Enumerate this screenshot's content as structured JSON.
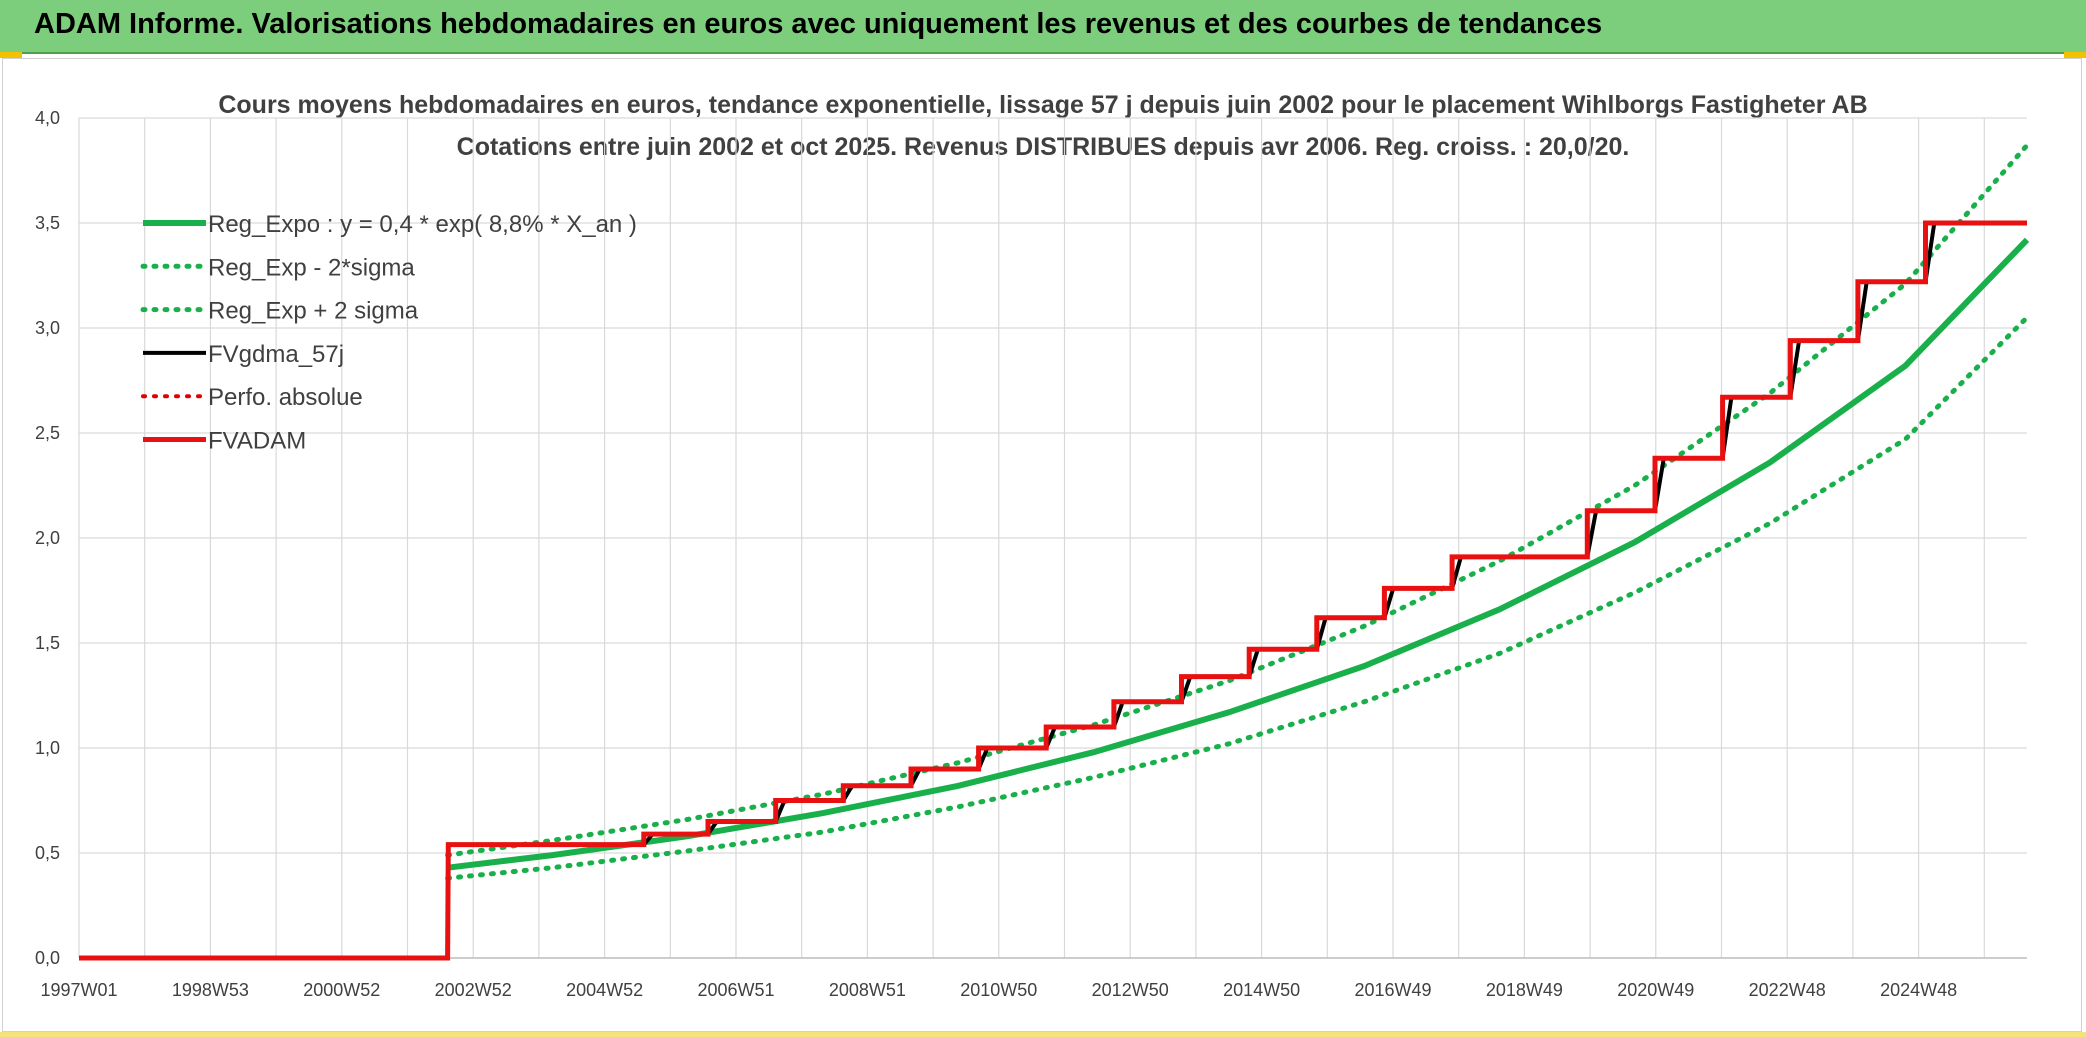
{
  "banner": {
    "title": "ADAM Informe. Valorisations hebdomadaires en euros avec uniquement les revenus et des courbes de tendances",
    "background": "#7ccd7c"
  },
  "chart_data": {
    "type": "line",
    "title_line1": "Cours moyens hebdomadaires en euros, tendance exponentielle, lissage 57 j depuis juin 2002 pour le placement Wihlborgs Fastigheter AB",
    "title_line2": "Cotations entre juin 2002 et oct 2025. Revenus DISTRIBUES depuis avr 2006. Reg. croiss. : 20,0/20.",
    "xlabel": "",
    "ylabel": "",
    "x_tick_labels": [
      "1997W01",
      "1998W53",
      "2000W52",
      "2002W52",
      "2004W52",
      "2006W51",
      "2008W51",
      "2010W50",
      "2012W50",
      "2014W50",
      "2016W49",
      "2018W49",
      "2020W49",
      "2022W48",
      "2024W48"
    ],
    "xlim": [
      1997.0,
      2025.8
    ],
    "ylim": [
      0,
      4
    ],
    "y_ticks": [
      0,
      0.5,
      1.0,
      1.5,
      2.0,
      2.5,
      3.0,
      3.5,
      4.0
    ],
    "y_tick_labels": [
      "0,0",
      "0,5",
      "1,0",
      "1,5",
      "2,0",
      "2,5",
      "3,0",
      "3,5",
      "4,0"
    ],
    "grid": true,
    "legend_position": "top-left",
    "series": [
      {
        "name": "Reg_Expo : y = 0,4 * exp( 8,8% *  X_an )",
        "color": "#19b04b",
        "style": "solid",
        "width": 6,
        "points": [
          [
            2002.45,
            0.43
          ],
          [
            2004.0,
            0.49
          ],
          [
            2006.0,
            0.58
          ],
          [
            2008.0,
            0.69
          ],
          [
            2010.0,
            0.82
          ],
          [
            2012.0,
            0.98
          ],
          [
            2014.0,
            1.17
          ],
          [
            2016.0,
            1.39
          ],
          [
            2018.0,
            1.66
          ],
          [
            2020.0,
            1.98
          ],
          [
            2022.0,
            2.36
          ],
          [
            2024.0,
            2.82
          ],
          [
            2025.8,
            3.42
          ]
        ]
      },
      {
        "name": "Reg_Exp - 2*sigma",
        "color": "#19b04b",
        "style": "dotted",
        "width": 5,
        "points": [
          [
            2002.45,
            0.38
          ],
          [
            2004.0,
            0.43
          ],
          [
            2006.0,
            0.51
          ],
          [
            2008.0,
            0.6
          ],
          [
            2010.0,
            0.72
          ],
          [
            2012.0,
            0.86
          ],
          [
            2014.0,
            1.02
          ],
          [
            2016.0,
            1.22
          ],
          [
            2018.0,
            1.45
          ],
          [
            2020.0,
            1.74
          ],
          [
            2022.0,
            2.07
          ],
          [
            2024.0,
            2.47
          ],
          [
            2025.8,
            3.05
          ]
        ]
      },
      {
        "name": "Reg_Exp + 2 sigma",
        "color": "#19b04b",
        "style": "dotted",
        "width": 5,
        "points": [
          [
            2002.45,
            0.49
          ],
          [
            2004.0,
            0.56
          ],
          [
            2006.0,
            0.66
          ],
          [
            2008.0,
            0.78
          ],
          [
            2010.0,
            0.93
          ],
          [
            2012.0,
            1.11
          ],
          [
            2014.0,
            1.32
          ],
          [
            2016.0,
            1.58
          ],
          [
            2018.0,
            1.89
          ],
          [
            2020.0,
            2.25
          ],
          [
            2022.0,
            2.69
          ],
          [
            2024.0,
            3.21
          ],
          [
            2025.8,
            3.87
          ]
        ]
      },
      {
        "name": "FVgdma_57j",
        "color": "#000000",
        "style": "solid",
        "width": 4,
        "points": [
          [
            1997.0,
            0.0
          ],
          [
            2002.45,
            0.0
          ],
          [
            2002.46,
            0.54
          ],
          [
            2005.35,
            0.54
          ],
          [
            2005.48,
            0.59
          ],
          [
            2006.3,
            0.59
          ],
          [
            2006.43,
            0.65
          ],
          [
            2007.3,
            0.65
          ],
          [
            2007.43,
            0.75
          ],
          [
            2008.3,
            0.75
          ],
          [
            2008.43,
            0.82
          ],
          [
            2009.3,
            0.82
          ],
          [
            2009.43,
            0.9
          ],
          [
            2010.3,
            0.9
          ],
          [
            2010.43,
            1.0
          ],
          [
            2011.3,
            1.0
          ],
          [
            2011.43,
            1.1
          ],
          [
            2012.3,
            1.1
          ],
          [
            2012.43,
            1.22
          ],
          [
            2013.3,
            1.22
          ],
          [
            2013.43,
            1.34
          ],
          [
            2014.3,
            1.34
          ],
          [
            2014.43,
            1.47
          ],
          [
            2015.3,
            1.47
          ],
          [
            2015.43,
            1.62
          ],
          [
            2016.3,
            1.62
          ],
          [
            2016.43,
            1.76
          ],
          [
            2017.3,
            1.76
          ],
          [
            2017.43,
            1.91
          ],
          [
            2019.3,
            1.91
          ],
          [
            2019.43,
            2.13
          ],
          [
            2020.3,
            2.13
          ],
          [
            2020.43,
            2.38
          ],
          [
            2021.3,
            2.38
          ],
          [
            2021.43,
            2.67
          ],
          [
            2022.3,
            2.67
          ],
          [
            2022.43,
            2.94
          ],
          [
            2023.3,
            2.94
          ],
          [
            2023.43,
            3.22
          ],
          [
            2024.3,
            3.22
          ],
          [
            2024.43,
            3.5
          ],
          [
            2025.8,
            3.5
          ]
        ]
      },
      {
        "name": "Perfo. absolue",
        "color": "#e00000",
        "style": "dotted",
        "width": 4,
        "points": []
      },
      {
        "name": "FVADAM",
        "color": "#e81010",
        "style": "solid",
        "width": 5,
        "points": [
          [
            1997.0,
            0.0
          ],
          [
            2002.45,
            0.0
          ],
          [
            2002.46,
            0.54
          ],
          [
            2005.35,
            0.54
          ],
          [
            2005.35,
            0.59
          ],
          [
            2006.3,
            0.59
          ],
          [
            2006.3,
            0.65
          ],
          [
            2007.3,
            0.65
          ],
          [
            2007.3,
            0.75
          ],
          [
            2008.3,
            0.75
          ],
          [
            2008.3,
            0.82
          ],
          [
            2009.3,
            0.82
          ],
          [
            2009.3,
            0.9
          ],
          [
            2010.3,
            0.9
          ],
          [
            2010.3,
            1.0
          ],
          [
            2011.3,
            1.0
          ],
          [
            2011.3,
            1.1
          ],
          [
            2012.3,
            1.1
          ],
          [
            2012.3,
            1.22
          ],
          [
            2013.3,
            1.22
          ],
          [
            2013.3,
            1.34
          ],
          [
            2014.3,
            1.34
          ],
          [
            2014.3,
            1.47
          ],
          [
            2015.3,
            1.47
          ],
          [
            2015.3,
            1.62
          ],
          [
            2016.3,
            1.62
          ],
          [
            2016.3,
            1.76
          ],
          [
            2017.3,
            1.76
          ],
          [
            2017.3,
            1.91
          ],
          [
            2019.3,
            1.91
          ],
          [
            2019.3,
            2.13
          ],
          [
            2020.3,
            2.13
          ],
          [
            2020.3,
            2.38
          ],
          [
            2021.3,
            2.38
          ],
          [
            2021.3,
            2.67
          ],
          [
            2022.3,
            2.67
          ],
          [
            2022.3,
            2.94
          ],
          [
            2023.3,
            2.94
          ],
          [
            2023.3,
            3.22
          ],
          [
            2024.3,
            3.22
          ],
          [
            2024.3,
            3.5
          ],
          [
            2025.8,
            3.5
          ]
        ]
      }
    ]
  },
  "colors": {
    "grid": "#d9d9d9",
    "axis_text": "#404040",
    "corner_accent": "#f2c200"
  }
}
